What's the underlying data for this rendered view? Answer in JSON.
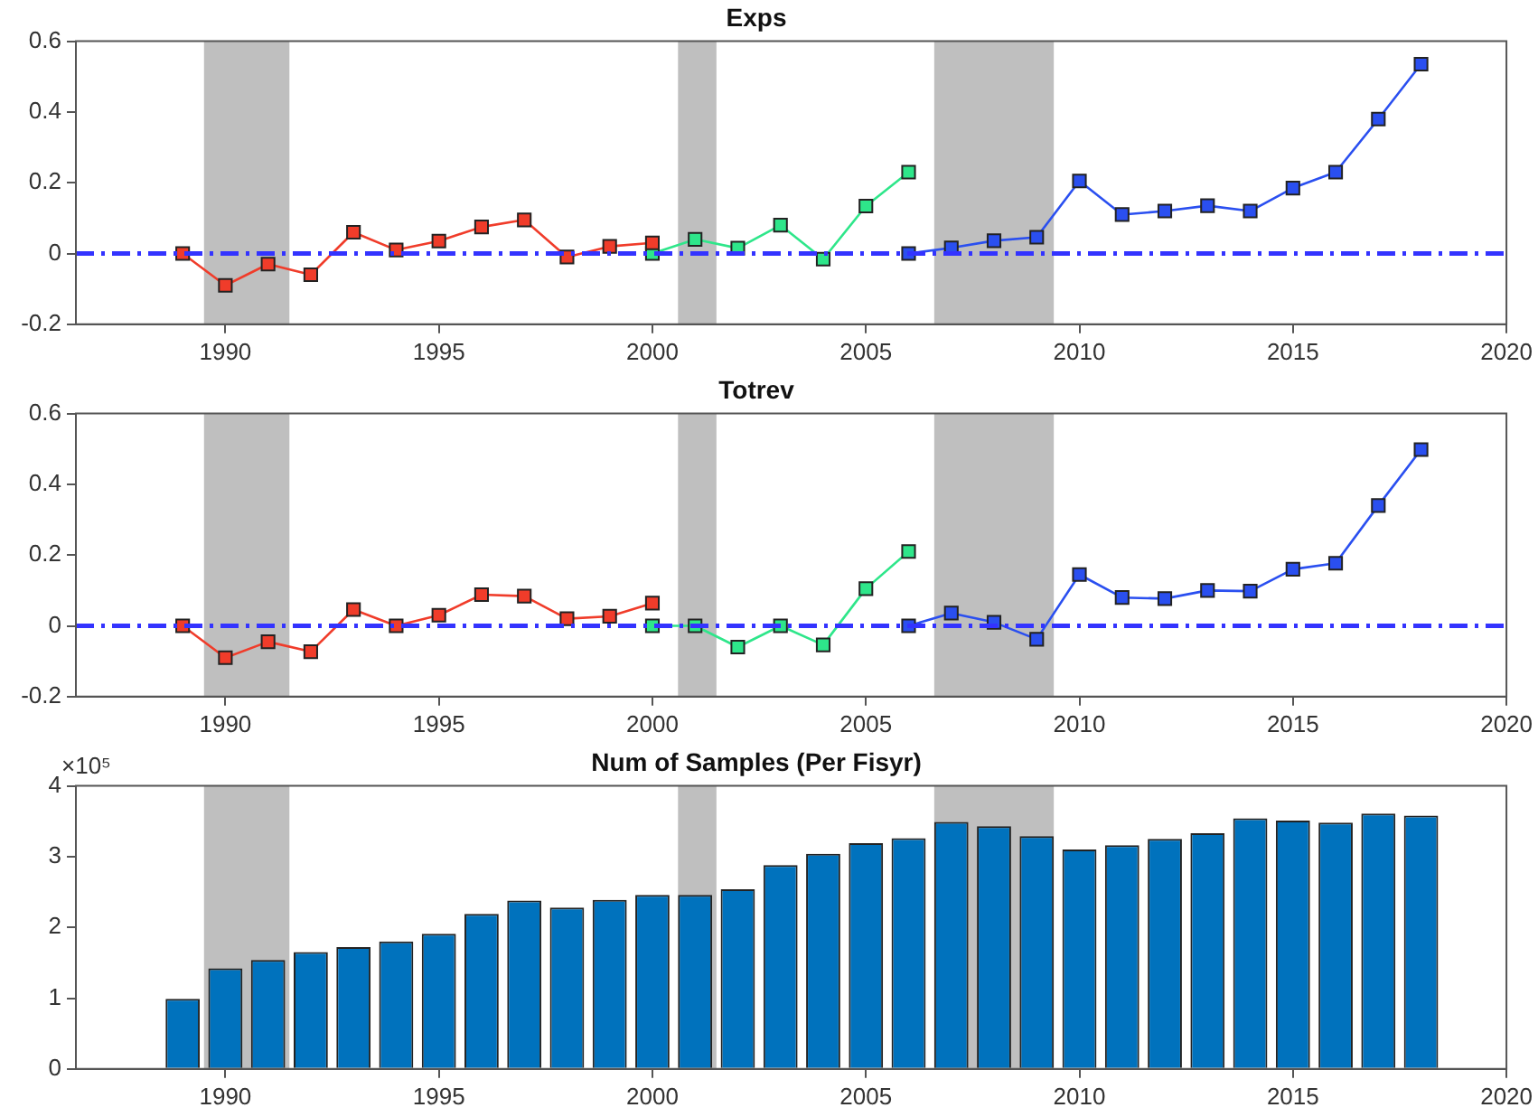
{
  "chart_data": [
    {
      "type": "line",
      "title": "Exps",
      "xlim": [
        1986.5,
        2020
      ],
      "xticks": [
        1990,
        1995,
        2000,
        2005,
        2010,
        2015,
        2020
      ],
      "ylim": [
        -0.2,
        0.6
      ],
      "yticks": [
        -0.2,
        0,
        0.2,
        0.4,
        0.6
      ],
      "grid": false,
      "legend": false,
      "marker": "square",
      "line_style": "solid",
      "series": [
        {
          "color": "#f03c2a",
          "x": [
            1989,
            1990,
            1991,
            1992,
            1993,
            1994,
            1995,
            1996,
            1997,
            1998,
            1999,
            2000
          ],
          "values": [
            0,
            -0.09,
            -0.03,
            -0.06,
            0.06,
            0.01,
            0.035,
            0.075,
            0.095,
            -0.01,
            0.02,
            0.03
          ]
        },
        {
          "color": "#2ee68a",
          "x": [
            2000,
            2001,
            2002,
            2003,
            2004,
            2005,
            2006
          ],
          "values": [
            0,
            0.04,
            0.015,
            0.08,
            -0.016,
            0.134,
            0.23
          ]
        },
        {
          "color": "#2a4ff0",
          "x": [
            2006,
            2007,
            2008,
            2009,
            2010,
            2011,
            2012,
            2013,
            2014,
            2015,
            2016,
            2017,
            2018
          ],
          "values": [
            0,
            0.016,
            0.036,
            0.046,
            0.205,
            0.11,
            0.12,
            0.135,
            0.12,
            0.185,
            0.23,
            0.38,
            0.535
          ]
        }
      ],
      "ref_lines": [
        {
          "axis": "y",
          "value": 0,
          "color": "#3333ff",
          "line_style": "dashdot"
        }
      ],
      "bands": [
        {
          "axis": "x",
          "from": 1989.5,
          "to": 1991.5,
          "color": "#bfbfbf"
        },
        {
          "axis": "x",
          "from": 2000.6,
          "to": 2001.5,
          "color": "#bfbfbf"
        },
        {
          "axis": "x",
          "from": 2006.6,
          "to": 2009.4,
          "color": "#bfbfbf"
        }
      ]
    },
    {
      "type": "line",
      "title": "Totrev",
      "xlim": [
        1986.5,
        2020
      ],
      "xticks": [
        1990,
        1995,
        2000,
        2005,
        2010,
        2015,
        2020
      ],
      "ylim": [
        -0.2,
        0.6
      ],
      "yticks": [
        -0.2,
        0,
        0.2,
        0.4,
        0.6
      ],
      "grid": false,
      "legend": false,
      "marker": "square",
      "line_style": "solid",
      "series": [
        {
          "color": "#f03c2a",
          "x": [
            1989,
            1990,
            1991,
            1992,
            1993,
            1994,
            1995,
            1996,
            1997,
            1998,
            1999,
            2000
          ],
          "values": [
            0,
            -0.09,
            -0.045,
            -0.073,
            0.046,
            0,
            0.03,
            0.088,
            0.084,
            0.02,
            0.027,
            0.064
          ]
        },
        {
          "color": "#2ee68a",
          "x": [
            2000,
            2001,
            2002,
            2003,
            2004,
            2005,
            2006
          ],
          "values": [
            0,
            0,
            -0.06,
            0,
            -0.054,
            0.105,
            0.21
          ]
        },
        {
          "color": "#2a4ff0",
          "x": [
            2006,
            2007,
            2008,
            2009,
            2010,
            2011,
            2012,
            2013,
            2014,
            2015,
            2016,
            2017,
            2018
          ],
          "values": [
            0,
            0.036,
            0.01,
            -0.038,
            0.145,
            0.08,
            0.077,
            0.1,
            0.098,
            0.16,
            0.177,
            0.34,
            0.498
          ]
        }
      ],
      "ref_lines": [
        {
          "axis": "y",
          "value": 0,
          "color": "#3333ff",
          "line_style": "dashdot"
        }
      ],
      "bands": [
        {
          "axis": "x",
          "from": 1989.5,
          "to": 1991.5,
          "color": "#bfbfbf"
        },
        {
          "axis": "x",
          "from": 2000.6,
          "to": 2001.5,
          "color": "#bfbfbf"
        },
        {
          "axis": "x",
          "from": 2006.6,
          "to": 2009.4,
          "color": "#bfbfbf"
        }
      ]
    },
    {
      "type": "bar",
      "title": "Num of Samples (Per Fisyr)",
      "xlim": [
        1986.5,
        2020
      ],
      "xticks": [
        1990,
        1995,
        2000,
        2005,
        2010,
        2015,
        2020
      ],
      "ylim": [
        0,
        4
      ],
      "yticks": [
        0,
        1,
        2,
        3,
        4
      ],
      "grid": false,
      "legend": false,
      "annotations": [
        "×10⁵"
      ],
      "x": [
        1989,
        1990,
        1991,
        1992,
        1993,
        1994,
        1995,
        1996,
        1997,
        1998,
        1999,
        2000,
        2001,
        2002,
        2003,
        2004,
        2005,
        2006,
        2007,
        2008,
        2009,
        2010,
        2011,
        2012,
        2013,
        2014,
        2015,
        2016,
        2017,
        2018
      ],
      "series": [
        {
          "color": "#0072bd",
          "values": [
            0.99,
            1.42,
            1.54,
            1.65,
            1.72,
            1.8,
            1.91,
            2.19,
            2.38,
            2.28,
            2.39,
            2.46,
            2.46,
            2.54,
            2.88,
            3.04,
            3.19,
            3.26,
            3.49,
            3.43,
            3.29,
            3.1,
            3.16,
            3.25,
            3.33,
            3.54,
            3.51,
            3.48,
            3.61,
            3.58
          ]
        }
      ],
      "bands": [
        {
          "axis": "x",
          "from": 1989.5,
          "to": 1991.5,
          "color": "#bfbfbf"
        },
        {
          "axis": "x",
          "from": 2000.6,
          "to": 2001.5,
          "color": "#bfbfbf"
        },
        {
          "axis": "x",
          "from": 2006.6,
          "to": 2009.4,
          "color": "#bfbfbf"
        }
      ]
    }
  ]
}
